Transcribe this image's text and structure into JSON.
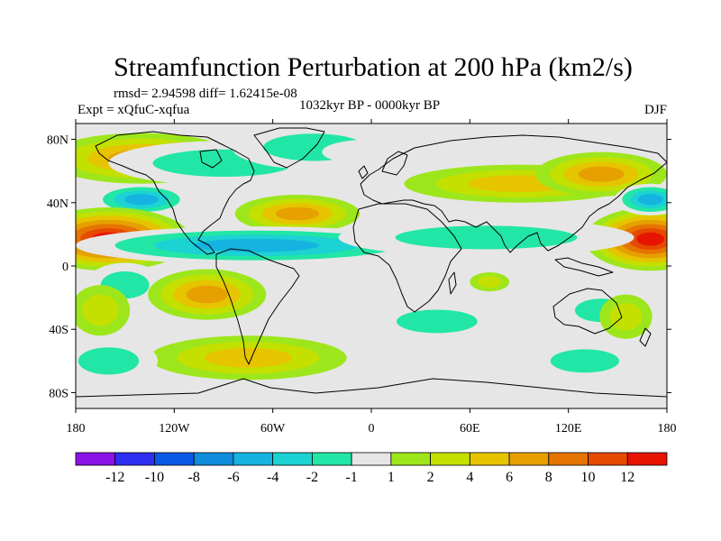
{
  "chart_data": {
    "type": "heatmap",
    "title": "Streamfunction Perturbation at 200 hPa (km2/s)",
    "stats": "rmsd= 2.94598  diff= 1.62415e-08",
    "period": "1032kyr BP - 0000kyr BP",
    "experiment": "Expt = xQfuC-xqfua",
    "season": "DJF",
    "x_ticks": [
      {
        "value": -180,
        "label": "180"
      },
      {
        "value": -120,
        "label": "120W"
      },
      {
        "value": -60,
        "label": "60W"
      },
      {
        "value": 0,
        "label": "0"
      },
      {
        "value": 60,
        "label": "60E"
      },
      {
        "value": 120,
        "label": "120E"
      },
      {
        "value": 180,
        "label": "180"
      }
    ],
    "y_ticks": [
      {
        "value": 80,
        "label": "80N"
      },
      {
        "value": 40,
        "label": "40N"
      },
      {
        "value": 0,
        "label": "0"
      },
      {
        "value": -40,
        "label": "40S"
      },
      {
        "value": -80,
        "label": "80S"
      }
    ],
    "xlim": [
      -180,
      180
    ],
    "ylim": [
      -90,
      90
    ],
    "colorbar": {
      "colors": [
        "#8b12e6",
        "#2e2ef0",
        "#0a58e6",
        "#0f8cdc",
        "#15b4e0",
        "#1cd2d2",
        "#22e6a6",
        "#e6e6e6",
        "#9ee61c",
        "#c4e000",
        "#e6c400",
        "#e6a000",
        "#e67400",
        "#e64a00",
        "#e61400"
      ],
      "labels": [
        "-12",
        "-10",
        "-8",
        "-6",
        "-4",
        "-2",
        "-1",
        "1",
        "2",
        "4",
        "6",
        "8",
        "10",
        "12"
      ]
    },
    "anomaly_features": [
      {
        "name": "north-pacific-arctic-positive",
        "lon": -140,
        "lat": 68,
        "value": 6
      },
      {
        "name": "north-america-arctic-negative",
        "lon": -90,
        "lat": 65,
        "value": -2
      },
      {
        "name": "north-atlantic-arctic-negative",
        "lon": -35,
        "lat": 75,
        "value": -2
      },
      {
        "name": "atlantic-arctic-weak-negative",
        "lon": 0,
        "lat": 72,
        "value": -1
      },
      {
        "name": "eurasia-positive-ridge",
        "lon": 90,
        "lat": 52,
        "value": 4
      },
      {
        "name": "siberia-positive",
        "lon": 140,
        "lat": 58,
        "value": 6
      },
      {
        "name": "northeast-pacific-negative",
        "lon": -140,
        "lat": 42,
        "value": -6
      },
      {
        "name": "north-atlantic-positive",
        "lon": -45,
        "lat": 33,
        "value": 6
      },
      {
        "name": "east-pacific-subtropical-high",
        "lon": -160,
        "lat": 17,
        "value": 12
      },
      {
        "name": "west-pacific-subtropical-high",
        "lon": 170,
        "lat": 17,
        "value": 12
      },
      {
        "name": "west-pacific-midlatitude-negative",
        "lon": 170,
        "lat": 42,
        "value": -6
      },
      {
        "name": "tropical-america-atlantic-band",
        "lon": -70,
        "lat": 13,
        "value": -6
      },
      {
        "name": "tropical-asia-band",
        "lon": 70,
        "lat": 18,
        "value": -2
      },
      {
        "name": "south-pacific-negative",
        "lon": -150,
        "lat": -12,
        "value": -2
      },
      {
        "name": "south-pacific-positive",
        "lon": -100,
        "lat": -18,
        "value": 6
      },
      {
        "name": "southeast-pacific-weak",
        "lon": -165,
        "lat": -28,
        "value": 2
      },
      {
        "name": "south-atlantic-negative",
        "lon": -15,
        "lat": -22,
        "value": -1
      },
      {
        "name": "south-indian-negative",
        "lon": 40,
        "lat": -35,
        "value": -2
      },
      {
        "name": "australia-negative",
        "lon": 140,
        "lat": -28,
        "value": -2
      },
      {
        "name": "australia-positive",
        "lon": 155,
        "lat": -32,
        "value": 2
      },
      {
        "name": "indian-ocean-weak-positive",
        "lon": 72,
        "lat": -10,
        "value": 2
      },
      {
        "name": "southern-ocean-positive",
        "lon": -75,
        "lat": -58,
        "value": 4
      },
      {
        "name": "southern-ocean-negative-west",
        "lon": -160,
        "lat": -60,
        "value": -2
      },
      {
        "name": "southern-ocean-negative-east",
        "lon": 130,
        "lat": -60,
        "value": -2
      }
    ]
  }
}
